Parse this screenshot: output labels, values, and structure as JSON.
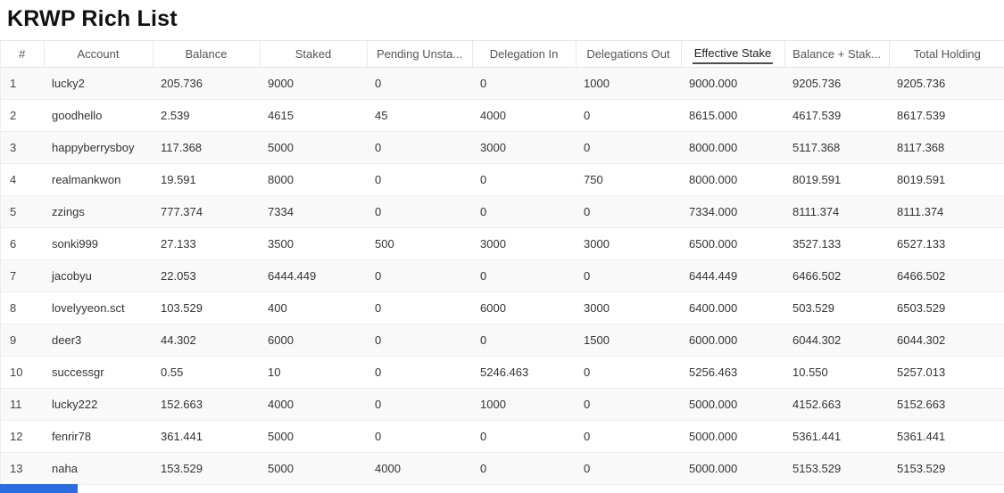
{
  "page": {
    "title": "KRWP Rich List"
  },
  "table": {
    "columns": [
      {
        "key": "rank",
        "label": "#",
        "sorted": false
      },
      {
        "key": "account",
        "label": "Account",
        "sorted": false
      },
      {
        "key": "balance",
        "label": "Balance",
        "sorted": false
      },
      {
        "key": "staked",
        "label": "Staked",
        "sorted": false
      },
      {
        "key": "pending_unstake",
        "label": "Pending Unsta...",
        "sorted": false
      },
      {
        "key": "delegation_in",
        "label": "Delegation In",
        "sorted": false
      },
      {
        "key": "delegations_out",
        "label": "Delegations Out",
        "sorted": false
      },
      {
        "key": "effective_stake",
        "label": "Effective Stake",
        "sorted": true
      },
      {
        "key": "balance_plus_stake",
        "label": "Balance + Stak...",
        "sorted": false
      },
      {
        "key": "total_holding",
        "label": "Total Holding",
        "sorted": false
      }
    ],
    "rows": [
      [
        "1",
        "lucky2",
        "205.736",
        "9000",
        "0",
        "0",
        "1000",
        "9000.000",
        "9205.736",
        "9205.736"
      ],
      [
        "2",
        "goodhello",
        "2.539",
        "4615",
        "45",
        "4000",
        "0",
        "8615.000",
        "4617.539",
        "8617.539"
      ],
      [
        "3",
        "happyberrysboy",
        "117.368",
        "5000",
        "0",
        "3000",
        "0",
        "8000.000",
        "5117.368",
        "8117.368"
      ],
      [
        "4",
        "realmankwon",
        "19.591",
        "8000",
        "0",
        "0",
        "750",
        "8000.000",
        "8019.591",
        "8019.591"
      ],
      [
        "5",
        "zzings",
        "777.374",
        "7334",
        "0",
        "0",
        "0",
        "7334.000",
        "8111.374",
        "8111.374"
      ],
      [
        "6",
        "sonki999",
        "27.133",
        "3500",
        "500",
        "3000",
        "3000",
        "6500.000",
        "3527.133",
        "6527.133"
      ],
      [
        "7",
        "jacobyu",
        "22.053",
        "6444.449",
        "0",
        "0",
        "0",
        "6444.449",
        "6466.502",
        "6466.502"
      ],
      [
        "8",
        "lovelyyeon.sct",
        "103.529",
        "400",
        "0",
        "6000",
        "3000",
        "6400.000",
        "503.529",
        "6503.529"
      ],
      [
        "9",
        "deer3",
        "44.302",
        "6000",
        "0",
        "0",
        "1500",
        "6000.000",
        "6044.302",
        "6044.302"
      ],
      [
        "10",
        "successgr",
        "0.55",
        "10",
        "0",
        "5246.463",
        "0",
        "5256.463",
        "10.550",
        "5257.013"
      ],
      [
        "11",
        "lucky222",
        "152.663",
        "4000",
        "0",
        "1000",
        "0",
        "5000.000",
        "4152.663",
        "5152.663"
      ],
      [
        "12",
        "fenrir78",
        "361.441",
        "5000",
        "0",
        "0",
        "0",
        "5000.000",
        "5361.441",
        "5361.441"
      ],
      [
        "13",
        "naha",
        "153.529",
        "5000",
        "4000",
        "0",
        "0",
        "5000.000",
        "5153.529",
        "5153.529"
      ]
    ]
  },
  "status_bar": {
    "color": "#2a6ce0"
  }
}
